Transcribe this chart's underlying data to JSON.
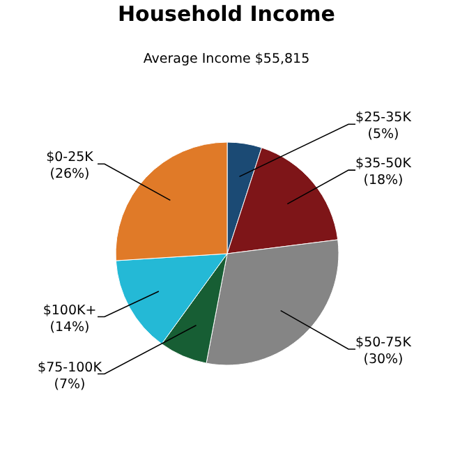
{
  "chart_data": {
    "type": "pie",
    "title": "Household Income",
    "subtitle": "Average Income  $55,815",
    "categories": [
      "$25-35K",
      "$35-50K",
      "$50-75K",
      "$75-100K",
      "$100K+",
      "$0-25K"
    ],
    "values": [
      5,
      18,
      30,
      7,
      14,
      26
    ],
    "value_labels": [
      "(5%)",
      "(18%)",
      "(30%)",
      "(7%)",
      "(14%)",
      "(26%)"
    ],
    "colors": [
      "#1b4a74",
      "#7e1518",
      "#858585",
      "#175e34",
      "#24b9d6",
      "#e07a28"
    ]
  }
}
